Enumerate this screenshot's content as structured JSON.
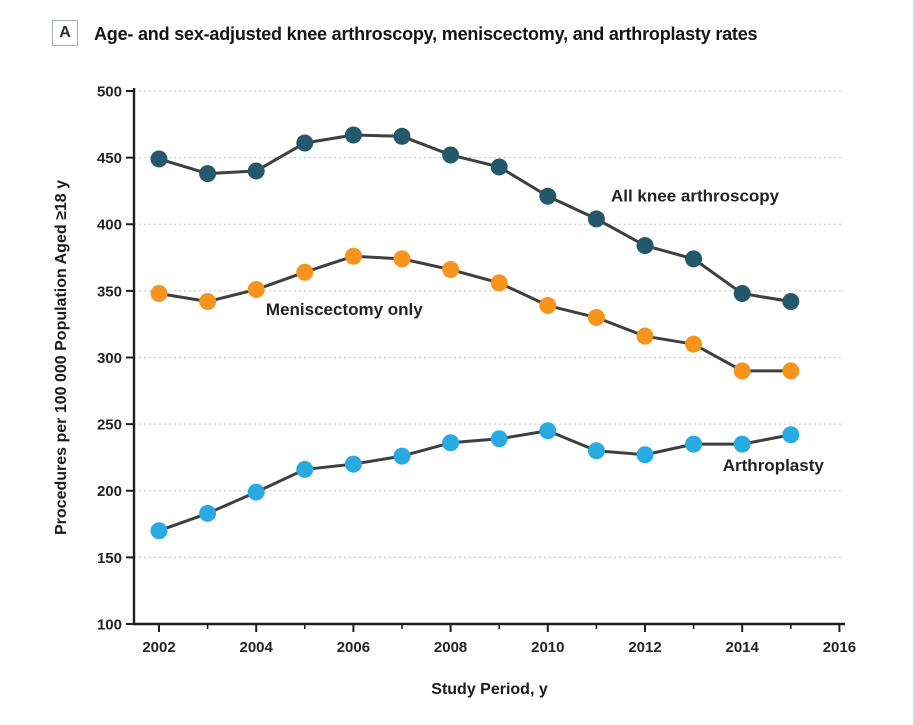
{
  "figure": {
    "panel_label": "A",
    "title": "Age- and sex-adjusted knee arthroscopy, meniscectomy, and arthroplasty rates"
  },
  "chart_data": {
    "type": "line",
    "title": "Age- and sex-adjusted knee arthroscopy, meniscectomy, and arthroplasty rates",
    "xlabel": "Study Period, y",
    "ylabel": "Procedures per 100 000 Population Aged ≥18 y",
    "x": [
      2002,
      2003,
      2004,
      2005,
      2006,
      2007,
      2008,
      2009,
      2010,
      2011,
      2012,
      2013,
      2014,
      2015
    ],
    "series": [
      {
        "name": "All knee arthroscopy",
        "color": "#24596B",
        "values": [
          449,
          438,
          440,
          461,
          467,
          466,
          452,
          443,
          421,
          404,
          384,
          374,
          348,
          342
        ]
      },
      {
        "name": "Meniscectomy only",
        "color": "#F7941E",
        "values": [
          348,
          342,
          351,
          364,
          376,
          374,
          366,
          356,
          339,
          330,
          316,
          310,
          290,
          290
        ]
      },
      {
        "name": "Arthroplasty",
        "color": "#29ABE2",
        "values": [
          170,
          183,
          199,
          216,
          220,
          226,
          236,
          239,
          245,
          230,
          227,
          235,
          235,
          242
        ]
      }
    ],
    "ylim": [
      100,
      500
    ],
    "xlim": [
      2002,
      2016
    ],
    "yticks": [
      100,
      150,
      200,
      250,
      300,
      350,
      400,
      450,
      500
    ],
    "xticks_labeled": [
      2002,
      2004,
      2006,
      2008,
      2010,
      2012,
      2014,
      2016
    ],
    "xticks_minor": [
      2003,
      2005,
      2007,
      2009,
      2011,
      2013,
      2015
    ],
    "grid": "horizontal-dotted",
    "legend_position": "inline-annotations",
    "line_color": "#3F3F3F",
    "grid_color": "#C7CDD1",
    "annotations": [
      {
        "text": "All knee arthroscopy",
        "x": 2011.3,
        "y": 417,
        "anchor": "start"
      },
      {
        "text": "Meniscectomy only",
        "x": 2004.2,
        "y": 332,
        "anchor": "start"
      },
      {
        "text": "Arthroplasty",
        "x": 2013.6,
        "y": 215,
        "anchor": "start"
      }
    ]
  }
}
